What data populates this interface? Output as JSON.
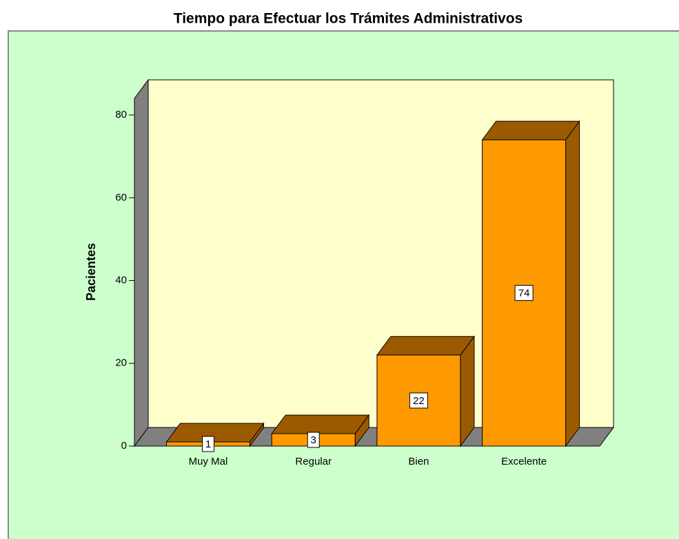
{
  "chart_data": {
    "type": "bar3d",
    "title": "Tiempo para Efectuar los Trámites Administrativos",
    "y_label": "Pacientes",
    "categories": [
      "Muy Mal",
      "Regular",
      "Bien",
      "Excelente"
    ],
    "values": [
      1,
      3,
      22,
      74
    ],
    "color": "#ff9900",
    "shade_color": "#9c5a00",
    "wall_color": "#ffffcc",
    "floor_color": "#808080",
    "background": "#ccffcc",
    "ylim": [
      0,
      84
    ],
    "yticks": [
      0,
      20,
      40,
      60,
      80
    ]
  }
}
